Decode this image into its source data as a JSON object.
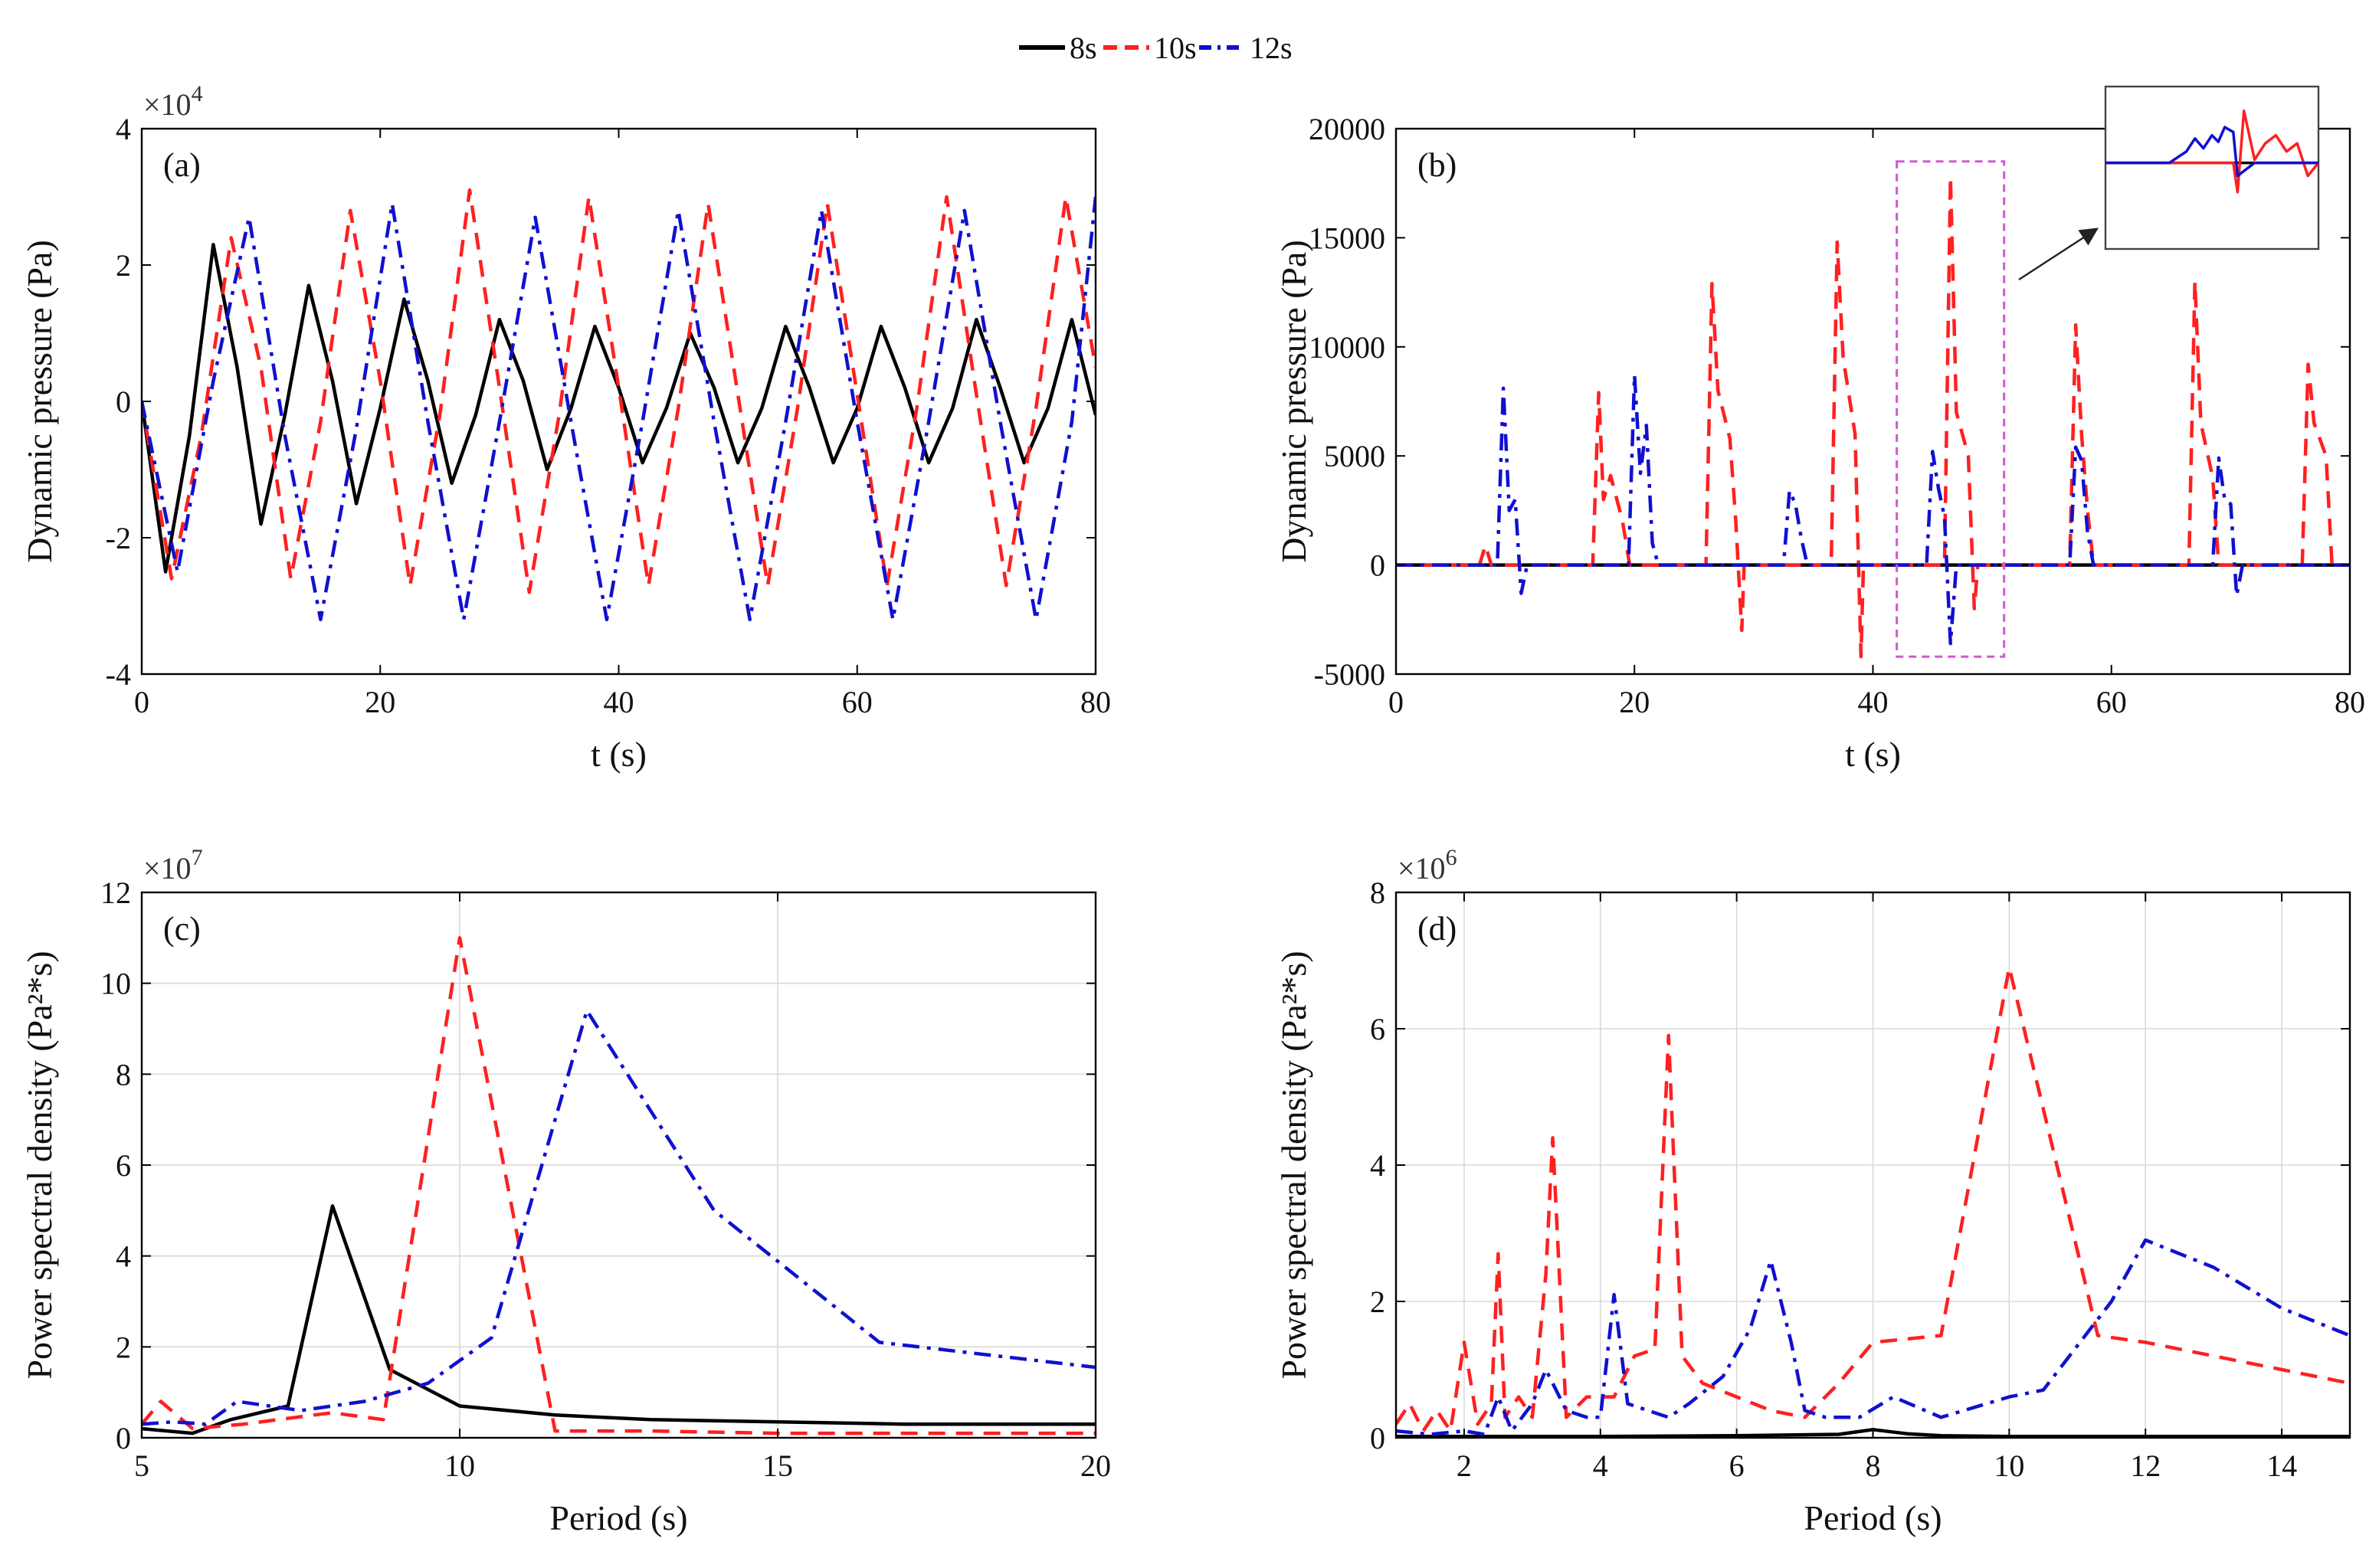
{
  "legend": {
    "items": [
      {
        "label": "8s",
        "color": "#000000",
        "dash": "solid"
      },
      {
        "label": "10s",
        "color": "#ff2020",
        "dash": "dashed"
      },
      {
        "label": "12s",
        "color": "#1010d0",
        "dash": "dashdot"
      }
    ]
  },
  "chart_data": [
    {
      "id": "a",
      "panel_label": "(a)",
      "type": "line",
      "ylabel": "Dynamic pressure (Pa)",
      "xlabel": "t (s)",
      "xlim": [
        0,
        80
      ],
      "ylim": [
        -4,
        4
      ],
      "xticks": [
        0,
        20,
        40,
        60,
        80
      ],
      "yticks": [
        -4,
        -2,
        0,
        2,
        4
      ],
      "ymultiplier": "×10",
      "ymultiplier_exp": "4",
      "grid": false,
      "series": [
        {
          "name": "8s",
          "x": [
            0,
            2,
            4,
            6,
            8,
            10,
            12,
            14,
            16,
            18,
            20,
            22,
            24,
            26,
            28,
            30,
            32,
            34,
            36,
            38,
            40,
            42,
            44,
            46,
            48,
            50,
            52,
            54,
            56,
            58,
            60,
            62,
            64,
            66,
            68,
            70,
            72,
            74,
            76,
            78,
            80
          ],
          "y": [
            0,
            -2.5,
            -0.5,
            2.3,
            0.5,
            -1.8,
            -0.2,
            1.7,
            0.3,
            -1.5,
            -0.1,
            1.5,
            0.3,
            -1.2,
            -0.2,
            1.2,
            0.3,
            -1.0,
            -0.1,
            1.1,
            0.2,
            -0.9,
            -0.1,
            1.0,
            0.2,
            -0.9,
            -0.1,
            1.1,
            0.2,
            -0.9,
            -0.1,
            1.1,
            0.2,
            -0.9,
            -0.1,
            1.2,
            0.2,
            -0.9,
            -0.1,
            1.2,
            -0.2
          ]
        },
        {
          "name": "10s",
          "x": [
            0,
            2.5,
            5,
            7.5,
            10,
            12.5,
            15,
            17.5,
            20,
            22.5,
            25,
            27.5,
            30,
            32.5,
            35,
            37.5,
            40,
            42.5,
            45,
            47.5,
            50,
            52.5,
            55,
            57.5,
            60,
            62.5,
            65,
            67.5,
            70,
            72.5,
            75,
            77.5,
            80
          ],
          "y": [
            0,
            -2.6,
            -0.5,
            2.4,
            0.5,
            -2.6,
            -0.3,
            2.8,
            0.3,
            -2.7,
            -0.2,
            3.1,
            0.2,
            -2.8,
            -0.2,
            3.0,
            0.2,
            -2.7,
            -0.1,
            2.9,
            0.1,
            -2.7,
            -0.1,
            2.9,
            0.1,
            -2.7,
            -0.1,
            3.0,
            0.1,
            -2.7,
            -0.1,
            3.0,
            0.5
          ]
        },
        {
          "name": "12s",
          "x": [
            0,
            3,
            6,
            9,
            12,
            15,
            18,
            21,
            24,
            27,
            30,
            33,
            36,
            39,
            42,
            45,
            48,
            51,
            54,
            57,
            60,
            63,
            66,
            69,
            72,
            75,
            78,
            80
          ],
          "y": [
            0,
            -2.5,
            0.3,
            2.7,
            -0.5,
            -3.2,
            -0.4,
            2.9,
            -0.3,
            -3.2,
            -0.3,
            2.7,
            -0.3,
            -3.2,
            -0.3,
            2.8,
            -0.3,
            -3.2,
            -0.3,
            2.8,
            -0.3,
            -3.2,
            -0.3,
            2.8,
            -0.3,
            -3.2,
            -0.3,
            3.0
          ]
        }
      ]
    },
    {
      "id": "b",
      "panel_label": "(b)",
      "type": "line",
      "ylabel": "Dynamic pressure (Pa)",
      "xlabel": "t (s)",
      "xlim": [
        0,
        80
      ],
      "ylim": [
        -5000,
        20000
      ],
      "xticks": [
        0,
        20,
        40,
        60,
        80
      ],
      "yticks": [
        -5000,
        0,
        5000,
        10000,
        15000,
        20000
      ],
      "grid": false,
      "highlight_box": {
        "x0": 42,
        "x1": 51,
        "y0": -4200,
        "y1": 18500
      },
      "series": [
        {
          "name": "8s",
          "x": [
            0,
            80
          ],
          "y": [
            0,
            0
          ]
        },
        {
          "name": "10s",
          "x": [
            0,
            7,
            7.5,
            8,
            8.2,
            16.5,
            17,
            17.4,
            18,
            19,
            19.6,
            20,
            26,
            26.5,
            27,
            28,
            28.5,
            29,
            29.2,
            36.5,
            37,
            37.5,
            38.5,
            39,
            39.2,
            46,
            46.5,
            47,
            48,
            48.5,
            48.8,
            56.5,
            57,
            57.5,
            58,
            58.5,
            66.5,
            67,
            67.5,
            68.5,
            69,
            76,
            76.5,
            77,
            78,
            78.5,
            80
          ],
          "y": [
            0,
            0,
            900,
            0,
            0,
            0,
            7900,
            3000,
            4100,
            2000,
            0,
            0,
            0,
            12900,
            8000,
            5800,
            2000,
            -3000,
            0,
            0,
            14800,
            9500,
            6000,
            -4200,
            0,
            0,
            17800,
            7000,
            5000,
            -2000,
            0,
            0,
            11000,
            6000,
            2500,
            0,
            0,
            13000,
            6500,
            4000,
            0,
            0,
            9200,
            6500,
            5000,
            0,
            0
          ]
        },
        {
          "name": "12s",
          "x": [
            0,
            8.5,
            9,
            9.5,
            10,
            10.5,
            11,
            19.5,
            20,
            20.5,
            21,
            21.5,
            22,
            32.5,
            33,
            33.5,
            34,
            34.5,
            35,
            44.5,
            45,
            45.5,
            46,
            46.5,
            47,
            56.5,
            57,
            57.5,
            58,
            58.5,
            68.5,
            69,
            69.5,
            70,
            70.5,
            71,
            80
          ],
          "y": [
            0,
            0,
            8100,
            2500,
            3000,
            -1300,
            0,
            0,
            8700,
            4200,
            6400,
            1000,
            0,
            0,
            3400,
            2800,
            1200,
            0,
            0,
            0,
            5200,
            3500,
            2200,
            -3600,
            0,
            0,
            5400,
            4800,
            1500,
            0,
            0,
            4900,
            3000,
            2800,
            -1400,
            0,
            0
          ]
        }
      ]
    },
    {
      "id": "c",
      "panel_label": "(c)",
      "type": "line",
      "ylabel": "Power spectral density (Pa²*s)",
      "xlabel": "Period (s)",
      "xlim": [
        5,
        20
      ],
      "ylim": [
        0,
        12
      ],
      "xticks": [
        5,
        10,
        15,
        20
      ],
      "yticks": [
        0,
        2,
        4,
        6,
        8,
        10,
        12
      ],
      "ymultiplier": "×10",
      "ymultiplier_exp": "7",
      "grid": true,
      "series": [
        {
          "name": "8s",
          "x": [
            5,
            5.8,
            6.4,
            7.3,
            8,
            8.9,
            10,
            11.5,
            13,
            15,
            17,
            20
          ],
          "y": [
            0.2,
            0.1,
            0.4,
            0.7,
            5.1,
            1.5,
            0.7,
            0.5,
            0.4,
            0.35,
            0.3,
            0.3
          ]
        },
        {
          "name": "10s",
          "x": [
            5,
            5.3,
            5.8,
            6.6,
            7.7,
            8,
            8.8,
            10,
            11.5,
            13,
            15,
            17,
            20
          ],
          "y": [
            0.3,
            0.8,
            0.2,
            0.3,
            0.5,
            0.55,
            0.4,
            11.0,
            0.15,
            0.15,
            0.1,
            0.1,
            0.1
          ]
        },
        {
          "name": "12s",
          "x": [
            5,
            5.5,
            6,
            6.5,
            7.5,
            8.5,
            9.5,
            10.5,
            12,
            14,
            16.6,
            20
          ],
          "y": [
            0.3,
            0.35,
            0.3,
            0.8,
            0.6,
            0.8,
            1.2,
            2.2,
            9.4,
            5.0,
            2.1,
            1.55
          ]
        }
      ]
    },
    {
      "id": "d",
      "panel_label": "(d)",
      "type": "line",
      "ylabel": "Power spectral density (Pa²*s)",
      "xlabel": "Period (s)",
      "xlim": [
        1,
        15
      ],
      "ylim": [
        0,
        8
      ],
      "xticks": [
        2,
        4,
        6,
        8,
        10,
        12,
        14
      ],
      "yticks": [
        0,
        2,
        4,
        6,
        8
      ],
      "ymultiplier": "×10",
      "ymultiplier_exp": "6",
      "grid": true,
      "series": [
        {
          "name": "8s",
          "x": [
            1,
            4,
            6,
            7.5,
            8,
            8.5,
            9,
            10,
            12,
            15
          ],
          "y": [
            0.02,
            0.02,
            0.03,
            0.05,
            0.12,
            0.06,
            0.03,
            0.02,
            0.02,
            0.02
          ]
        },
        {
          "name": "10s",
          "x": [
            1,
            1.2,
            1.4,
            1.6,
            1.8,
            2.0,
            2.2,
            2.4,
            2.5,
            2.6,
            2.8,
            3.0,
            3.2,
            3.3,
            3.5,
            3.8,
            4.2,
            4.5,
            4.8,
            5.0,
            5.2,
            5.5,
            6,
            6.5,
            7,
            7.5,
            8,
            9,
            10,
            11.3,
            12,
            13,
            14,
            15
          ],
          "y": [
            0.2,
            0.5,
            0.1,
            0.4,
            0.1,
            1.4,
            0.2,
            0.5,
            2.7,
            0.3,
            0.6,
            0.3,
            2.4,
            4.4,
            0.3,
            0.6,
            0.6,
            1.2,
            1.3,
            5.9,
            1.2,
            0.8,
            0.6,
            0.4,
            0.3,
            0.8,
            1.4,
            1.5,
            6.9,
            1.5,
            1.4,
            1.2,
            1.0,
            0.8
          ]
        },
        {
          "name": "12s",
          "x": [
            1,
            1.5,
            2,
            2.3,
            2.5,
            2.7,
            3,
            3.2,
            3.5,
            3.8,
            4.0,
            4.2,
            4.4,
            4.7,
            5,
            5.3,
            5.8,
            6.2,
            6.5,
            6.8,
            7,
            7.3,
            7.8,
            8.3,
            9,
            10,
            10.5,
            11.5,
            12,
            13,
            14,
            15
          ],
          "y": [
            0.1,
            0.05,
            0.1,
            0.05,
            0.6,
            0.1,
            0.5,
            1.0,
            0.4,
            0.3,
            0.3,
            2.1,
            0.5,
            0.4,
            0.3,
            0.5,
            0.9,
            1.6,
            2.6,
            1.4,
            0.4,
            0.3,
            0.3,
            0.6,
            0.3,
            0.6,
            0.7,
            2.0,
            2.9,
            2.5,
            1.9,
            1.5
          ]
        }
      ]
    }
  ],
  "inset": {
    "series": [
      {
        "name": "8s",
        "x": [
          0,
          1
        ],
        "y": [
          0.53,
          0.53
        ]
      },
      {
        "name": "10s",
        "x": [
          0,
          0.35,
          0.4,
          0.55,
          0.6,
          0.62,
          0.65,
          0.7,
          0.75,
          0.8,
          0.85,
          0.9,
          0.95,
          1.0
        ],
        "y": [
          0.53,
          0.53,
          0.53,
          0.53,
          0.53,
          0.35,
          0.85,
          0.55,
          0.65,
          0.7,
          0.6,
          0.65,
          0.45,
          0.53
        ]
      },
      {
        "name": "12s",
        "x": [
          0,
          0.3,
          0.38,
          0.42,
          0.46,
          0.5,
          0.53,
          0.56,
          0.6,
          0.62,
          0.7,
          0.8,
          0.9,
          1.0
        ],
        "y": [
          0.53,
          0.53,
          0.6,
          0.68,
          0.62,
          0.7,
          0.66,
          0.75,
          0.72,
          0.45,
          0.53,
          0.53,
          0.53,
          0.53
        ]
      }
    ]
  }
}
